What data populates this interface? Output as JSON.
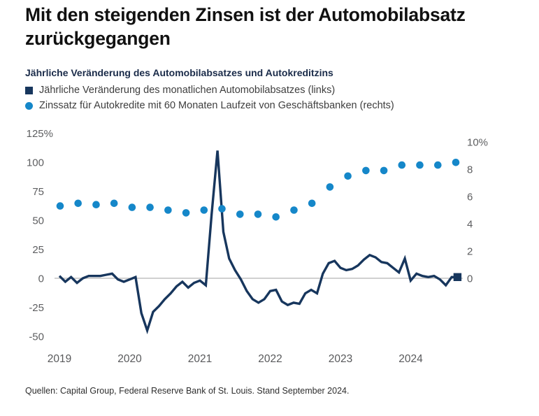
{
  "header": {
    "title": "Mit den steigenden Zinsen ist der Automobilabsatz zurückgegangen",
    "subtitle": "Jährliche Veränderung des Automobilabsatzes und Autokreditzins"
  },
  "legend": [
    {
      "marker": "square",
      "color": "#17365d",
      "label": "Jährliche Veränderung des monatlichen Automobilabsatzes (links)"
    },
    {
      "marker": "circle",
      "color": "#1587c9",
      "label": "Zinssatz für Autokredite mit 60 Monaten Laufzeit von Geschäftsbanken (rechts)"
    }
  ],
  "source": "Quellen: Capital Group, Federal Reserve Bank of St. Louis. Stand September 2024.",
  "chart_data": {
    "type": "line",
    "title": "Jährliche Veränderung des Automobilabsatzes und Autokreditzins",
    "grid": "zero-line-only",
    "zero_line_color": "#b3b3b3",
    "legend_position": "top",
    "x_axis": {
      "ticks": [
        "2019",
        "2020",
        "2021",
        "2022",
        "2023",
        "2024"
      ]
    },
    "left_axis": {
      "ticks": [
        "125%",
        "100",
        "75",
        "50",
        "25",
        "0",
        "-25",
        "-50"
      ],
      "tick_values": [
        125,
        100,
        75,
        50,
        25,
        0,
        -25,
        -50
      ],
      "range": [
        -50,
        125
      ],
      "unit": "%"
    },
    "right_axis": {
      "ticks": [
        "10%",
        "8",
        "6",
        "4",
        "2",
        "0"
      ],
      "tick_values": [
        10,
        8,
        6,
        4,
        2,
        0
      ],
      "range": [
        0,
        10
      ],
      "unit": "%"
    },
    "series": [
      {
        "name": "Jährliche Veränderung des monatlichen Automobilabsatzes (links)",
        "type": "line",
        "axis": "left",
        "color": "#17365d",
        "frequency": "monthly",
        "x_start": "2019-01",
        "x_end": "2024-09",
        "end_marker": "square",
        "values": [
          2,
          -3,
          1,
          -4,
          0,
          2,
          2,
          2,
          3,
          4,
          -1,
          -3,
          -1,
          1,
          -30,
          -45,
          -29,
          -24,
          -18,
          -13,
          -7,
          -3,
          -8,
          -4,
          -2,
          -6,
          55,
          110,
          40,
          17,
          7,
          -1,
          -11,
          -18,
          -21,
          -18,
          -11,
          -10,
          -20,
          -23,
          -21,
          -22,
          -13,
          -10,
          -13,
          4,
          13,
          15,
          9,
          7,
          8,
          11,
          16,
          20,
          18,
          14,
          13,
          9,
          5,
          17,
          -2,
          4,
          2,
          1,
          2,
          -1,
          -6,
          1,
          1
        ]
      },
      {
        "name": "Zinssatz für Autokredite mit 60 Monaten Laufzeit von Geschäftsbanken (rechts)",
        "type": "scatter",
        "axis": "right",
        "color": "#1587c9",
        "frequency": "quarterly",
        "x_start": "2019-Q1",
        "x_end": "2024-Q3",
        "values": [
          5.3,
          5.5,
          5.4,
          5.5,
          5.2,
          5.2,
          5.0,
          4.8,
          5.0,
          5.1,
          4.7,
          4.7,
          4.5,
          5.0,
          5.5,
          6.7,
          7.5,
          7.9,
          7.9,
          8.3,
          8.3,
          8.3,
          8.5
        ]
      }
    ]
  }
}
